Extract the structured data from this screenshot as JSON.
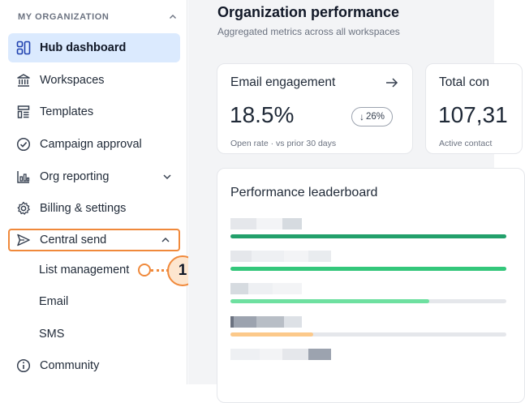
{
  "sidebar": {
    "org_title": "MY ORGANIZATION",
    "items": [
      {
        "label": "Hub dashboard",
        "icon": "hub-dashboard-icon",
        "active": true
      },
      {
        "label": "Workspaces",
        "icon": "workspaces-icon"
      },
      {
        "label": "Templates",
        "icon": "templates-icon"
      },
      {
        "label": "Campaign approval",
        "icon": "campaign-approval-icon"
      },
      {
        "label": "Org reporting",
        "icon": "org-reporting-icon"
      },
      {
        "label": "Billing & settings",
        "icon": "billing-settings-icon"
      },
      {
        "label": "Central send",
        "icon": "central-send-icon"
      },
      {
        "label": "Community",
        "icon": "community-icon"
      }
    ],
    "central_send_subitems": [
      "List management",
      "Email",
      "SMS"
    ]
  },
  "callout": {
    "number": "1",
    "accent": "#f0893b"
  },
  "main": {
    "title": "Organization performance",
    "subtitle": "Aggregated metrics across all workspaces",
    "cards": [
      {
        "title": "Email engagement",
        "value": "18.5%",
        "badge": "26%",
        "badge_direction": "down",
        "footnote": "Open rate · vs prior 30 days"
      },
      {
        "title": "Total con",
        "value": "107,31",
        "footnote": "Active contact"
      }
    ],
    "leaderboard": {
      "title": "Performance leaderboard",
      "rows": [
        {
          "fill": 1.0,
          "color": "#22a06b"
        },
        {
          "fill": 1.0,
          "color": "#34c77b"
        },
        {
          "fill": 0.72,
          "color": "#6ee0a0"
        },
        {
          "fill": 0.3,
          "color": "#fcc98a"
        },
        {
          "fill": 0.0,
          "color": "#e5e7eb"
        }
      ]
    }
  }
}
